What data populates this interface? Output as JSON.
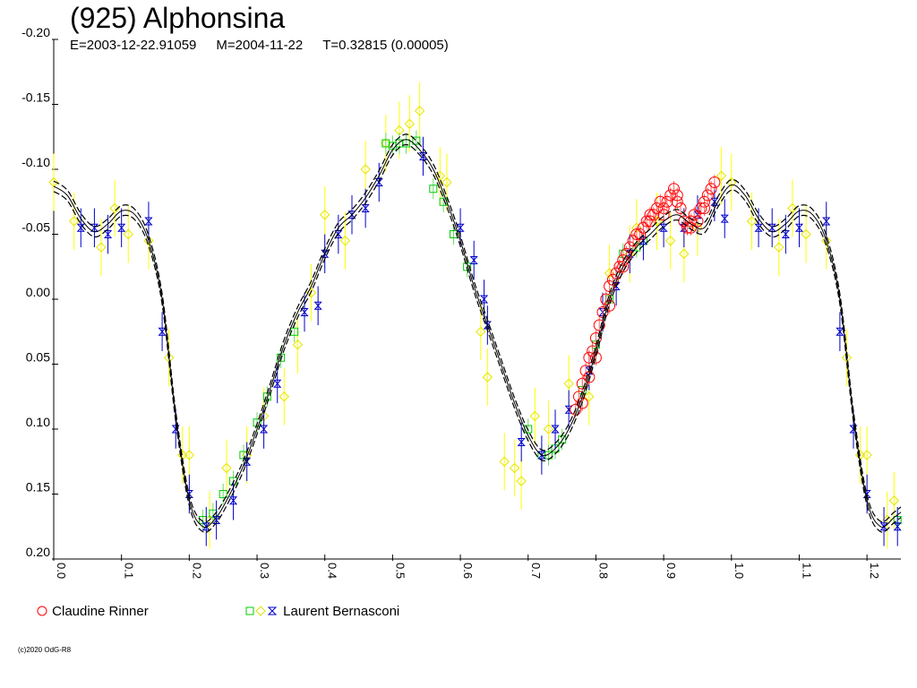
{
  "chart_data": {
    "type": "scatter",
    "title": "(925) Alphonsina",
    "subtitle": {
      "epoch": "E=2003-12-22.91059",
      "mean": "M=2004-11-22",
      "period": "T=0.32815 (0.00005)"
    },
    "xlabel": "",
    "ylabel": "",
    "xlim": [
      0.0,
      1.25
    ],
    "ylim": [
      -0.2,
      0.2
    ],
    "y_inverted": true,
    "x_ticks": [
      "0.0",
      "0.1",
      "0.2",
      "0.3",
      "0.4",
      "0.5",
      "0.6",
      "0.7",
      "0.8",
      "0.9",
      "1.0",
      "1.1",
      "1.2"
    ],
    "y_ticks": [
      "-0.20",
      "-0.15",
      "-0.10",
      "-0.05",
      "0.00",
      "0.05",
      "0.10",
      "0.15",
      "0.20"
    ],
    "grid": false,
    "legend_position": "bottom",
    "fit_curve": {
      "x": [
        0.0,
        0.02,
        0.04,
        0.06,
        0.08,
        0.1,
        0.12,
        0.14,
        0.16,
        0.18,
        0.2,
        0.22,
        0.24,
        0.26,
        0.28,
        0.3,
        0.32,
        0.34,
        0.36,
        0.38,
        0.4,
        0.42,
        0.44,
        0.46,
        0.48,
        0.5,
        0.52,
        0.54,
        0.56,
        0.58,
        0.6,
        0.62,
        0.64,
        0.66,
        0.68,
        0.7,
        0.72,
        0.74,
        0.76,
        0.78,
        0.8,
        0.82,
        0.84,
        0.86,
        0.88,
        0.9,
        0.92,
        0.94,
        0.96,
        0.98,
        1.0,
        1.02,
        1.04,
        1.06,
        1.08,
        1.1,
        1.12,
        1.14,
        1.16,
        1.18,
        1.2,
        1.22,
        1.24,
        1.25
      ],
      "y": [
        -0.087,
        -0.08,
        -0.062,
        -0.052,
        -0.058,
        -0.068,
        -0.065,
        -0.045,
        0.0,
        0.09,
        0.155,
        0.175,
        0.168,
        0.15,
        0.128,
        0.1,
        0.068,
        0.035,
        0.01,
        -0.01,
        -0.035,
        -0.055,
        -0.065,
        -0.078,
        -0.095,
        -0.115,
        -0.123,
        -0.115,
        -0.1,
        -0.075,
        -0.045,
        -0.01,
        0.02,
        0.05,
        0.08,
        0.105,
        0.12,
        0.115,
        0.1,
        0.075,
        0.04,
        0.0,
        -0.025,
        -0.04,
        -0.05,
        -0.06,
        -0.065,
        -0.058,
        -0.055,
        -0.075,
        -0.088,
        -0.08,
        -0.062,
        -0.052,
        -0.058,
        -0.068,
        -0.065,
        -0.045,
        0.0,
        0.09,
        0.155,
        0.175,
        0.168,
        0.164
      ],
      "envelope": 0.004
    },
    "series": [
      {
        "name": "Claudine Rinner",
        "marker": "circle",
        "color": "#ff0000",
        "points": [
          [
            0.77,
            0.085
          ],
          [
            0.775,
            0.075
          ],
          [
            0.78,
            0.065
          ],
          [
            0.785,
            0.055
          ],
          [
            0.79,
            0.045
          ],
          [
            0.795,
            0.04
          ],
          [
            0.8,
            0.03
          ],
          [
            0.805,
            0.02
          ],
          [
            0.81,
            0.01
          ],
          [
            0.815,
            0.0
          ],
          [
            0.82,
            -0.01
          ],
          [
            0.825,
            -0.015
          ],
          [
            0.83,
            -0.02
          ],
          [
            0.835,
            -0.025
          ],
          [
            0.84,
            -0.03
          ],
          [
            0.845,
            -0.035
          ],
          [
            0.85,
            -0.04
          ],
          [
            0.855,
            -0.045
          ],
          [
            0.86,
            -0.05
          ],
          [
            0.865,
            -0.05
          ],
          [
            0.87,
            -0.055
          ],
          [
            0.875,
            -0.06
          ],
          [
            0.88,
            -0.065
          ],
          [
            0.885,
            -0.065
          ],
          [
            0.89,
            -0.07
          ],
          [
            0.895,
            -0.075
          ],
          [
            0.9,
            -0.07
          ],
          [
            0.905,
            -0.075
          ],
          [
            0.91,
            -0.08
          ],
          [
            0.915,
            -0.085
          ],
          [
            0.92,
            -0.075
          ],
          [
            0.925,
            -0.07
          ],
          [
            0.93,
            -0.06
          ],
          [
            0.935,
            -0.055
          ],
          [
            0.94,
            -0.06
          ],
          [
            0.945,
            -0.065
          ],
          [
            0.95,
            -0.06
          ],
          [
            0.955,
            -0.07
          ],
          [
            0.96,
            -0.075
          ],
          [
            0.965,
            -0.08
          ],
          [
            0.97,
            -0.085
          ],
          [
            0.975,
            -0.09
          ],
          [
            0.78,
            0.08
          ],
          [
            0.79,
            0.06
          ],
          [
            0.8,
            0.045
          ],
          [
            0.82,
            0.005
          ],
          [
            0.84,
            -0.025
          ],
          [
            0.88,
            -0.06
          ],
          [
            0.9,
            -0.065
          ],
          [
            0.92,
            -0.08
          ],
          [
            0.94,
            -0.055
          ],
          [
            0.96,
            -0.07
          ]
        ]
      },
      {
        "name": "Laurent Bernasconi",
        "marker": "square",
        "color": "#00cc00",
        "points": [
          [
            0.22,
            0.17
          ],
          [
            0.235,
            0.165
          ],
          [
            0.25,
            0.15
          ],
          [
            0.265,
            0.14
          ],
          [
            0.28,
            0.12
          ],
          [
            0.3,
            0.095
          ],
          [
            0.315,
            0.075
          ],
          [
            0.335,
            0.045
          ],
          [
            0.355,
            0.025
          ],
          [
            0.49,
            -0.12
          ],
          [
            0.5,
            -0.118
          ],
          [
            0.51,
            -0.12
          ],
          [
            0.52,
            -0.12
          ],
          [
            0.535,
            -0.122
          ],
          [
            0.56,
            -0.085
          ],
          [
            0.575,
            -0.075
          ],
          [
            0.59,
            -0.05
          ],
          [
            0.61,
            -0.025
          ],
          [
            0.7,
            0.1
          ],
          [
            0.72,
            0.12
          ],
          [
            0.73,
            0.12
          ],
          [
            0.74,
            0.115
          ],
          [
            0.75,
            0.108
          ],
          [
            0.78,
            0.07
          ],
          [
            0.8,
            0.035
          ],
          [
            0.82,
            0.0
          ],
          [
            0.84,
            -0.035
          ],
          [
            0.86,
            -0.04
          ],
          [
            0.87,
            -0.045
          ],
          [
            1.245,
            0.17
          ]
        ]
      },
      {
        "name": "Laurent Bernasconi",
        "marker": "diamond",
        "color": "#ffff00",
        "points": [
          [
            0.0,
            -0.09
          ],
          [
            0.03,
            -0.06
          ],
          [
            0.07,
            -0.04
          ],
          [
            0.09,
            -0.07
          ],
          [
            0.11,
            -0.05
          ],
          [
            0.14,
            -0.045
          ],
          [
            0.17,
            0.045
          ],
          [
            0.19,
            0.12
          ],
          [
            0.2,
            0.12
          ],
          [
            0.23,
            0.17
          ],
          [
            0.255,
            0.13
          ],
          [
            0.285,
            0.12
          ],
          [
            0.31,
            0.09
          ],
          [
            0.34,
            0.075
          ],
          [
            0.36,
            0.035
          ],
          [
            0.38,
            -0.005
          ],
          [
            0.4,
            -0.065
          ],
          [
            0.43,
            -0.045
          ],
          [
            0.46,
            -0.1
          ],
          [
            0.49,
            -0.12
          ],
          [
            0.51,
            -0.13
          ],
          [
            0.525,
            -0.135
          ],
          [
            0.54,
            -0.145
          ],
          [
            0.57,
            -0.095
          ],
          [
            0.58,
            -0.09
          ],
          [
            0.63,
            0.025
          ],
          [
            0.64,
            0.06
          ],
          [
            0.665,
            0.125
          ],
          [
            0.68,
            0.13
          ],
          [
            0.69,
            0.14
          ],
          [
            0.71,
            0.09
          ],
          [
            0.73,
            0.1
          ],
          [
            0.76,
            0.065
          ],
          [
            0.79,
            0.075
          ],
          [
            0.82,
            -0.02
          ],
          [
            0.85,
            -0.035
          ],
          [
            0.86,
            -0.055
          ],
          [
            0.89,
            -0.06
          ],
          [
            0.91,
            -0.045
          ],
          [
            0.93,
            -0.035
          ],
          [
            0.95,
            -0.055
          ],
          [
            0.985,
            -0.095
          ],
          [
            1.0,
            -0.09
          ],
          [
            1.03,
            -0.06
          ],
          [
            1.07,
            -0.04
          ],
          [
            1.09,
            -0.07
          ],
          [
            1.11,
            -0.05
          ],
          [
            1.14,
            -0.045
          ],
          [
            1.17,
            0.045
          ],
          [
            1.19,
            0.12
          ],
          [
            1.2,
            0.12
          ],
          [
            1.23,
            0.17
          ],
          [
            1.24,
            0.155
          ]
        ]
      },
      {
        "name": "Laurent Bernasconi",
        "marker": "hourglass",
        "color": "#0000cc",
        "points": [
          [
            0.04,
            -0.055
          ],
          [
            0.06,
            -0.055
          ],
          [
            0.08,
            -0.05
          ],
          [
            0.1,
            -0.055
          ],
          [
            0.14,
            -0.06
          ],
          [
            0.16,
            0.025
          ],
          [
            0.18,
            0.1
          ],
          [
            0.2,
            0.15
          ],
          [
            0.225,
            0.175
          ],
          [
            0.24,
            0.17
          ],
          [
            0.265,
            0.155
          ],
          [
            0.285,
            0.125
          ],
          [
            0.31,
            0.1
          ],
          [
            0.33,
            0.065
          ],
          [
            0.37,
            0.01
          ],
          [
            0.39,
            0.005
          ],
          [
            0.4,
            -0.035
          ],
          [
            0.42,
            -0.05
          ],
          [
            0.44,
            -0.065
          ],
          [
            0.46,
            -0.07
          ],
          [
            0.48,
            -0.09
          ],
          [
            0.545,
            -0.11
          ],
          [
            0.6,
            -0.055
          ],
          [
            0.62,
            -0.03
          ],
          [
            0.635,
            0.0
          ],
          [
            0.64,
            0.02
          ],
          [
            0.69,
            0.11
          ],
          [
            0.72,
            0.12
          ],
          [
            0.74,
            0.1
          ],
          [
            0.76,
            0.085
          ],
          [
            0.79,
            0.055
          ],
          [
            0.81,
            0.01
          ],
          [
            0.83,
            -0.01
          ],
          [
            0.85,
            -0.035
          ],
          [
            0.87,
            -0.045
          ],
          [
            0.9,
            -0.055
          ],
          [
            0.93,
            -0.055
          ],
          [
            0.95,
            -0.065
          ],
          [
            0.975,
            -0.075
          ],
          [
            0.99,
            -0.062
          ],
          [
            1.04,
            -0.055
          ],
          [
            1.06,
            -0.055
          ],
          [
            1.08,
            -0.05
          ],
          [
            1.1,
            -0.055
          ],
          [
            1.14,
            -0.06
          ],
          [
            1.16,
            0.025
          ],
          [
            1.18,
            0.1
          ],
          [
            1.2,
            0.15
          ],
          [
            1.225,
            0.175
          ],
          [
            1.245,
            0.175
          ]
        ]
      }
    ]
  },
  "legend": {
    "claudine_label": "Claudine Rinner",
    "laurent_label": "Laurent Bernasconi"
  },
  "credit": "(c)2020 OdG-R8"
}
